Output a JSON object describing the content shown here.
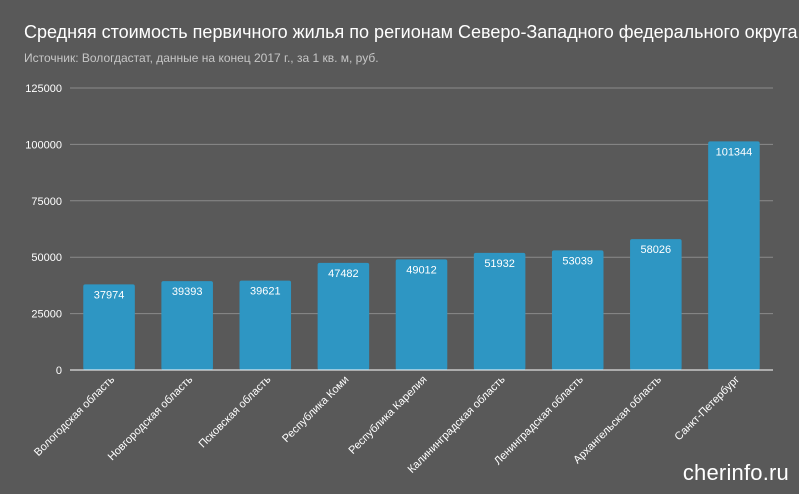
{
  "chart_data": {
    "type": "bar",
    "title": "Средняя стоимость первичного жилья по регионам Северо-Западного федерального округа",
    "subtitle": "Источник: Вологдастат, данные на конец 2017 г., за 1 кв. м, руб.",
    "categories": [
      "Вологодская область",
      "Новгородская область",
      "Псковская область",
      "Республика Коми",
      "Республика Карелия",
      "Калининградская область",
      "Ленинградская область",
      "Архангельская область",
      "Санкт-Петербург"
    ],
    "values": [
      37974,
      39393,
      39621,
      47482,
      49012,
      51932,
      53039,
      58026,
      101344
    ],
    "value_labels": [
      "37974",
      "39393",
      "39621",
      "47482",
      "49012",
      "51932",
      "53039",
      "58026",
      "101344"
    ],
    "yticks": [
      0,
      25000,
      50000,
      75000,
      100000,
      125000
    ],
    "ytick_labels": [
      "0",
      "25000",
      "50000",
      "75000",
      "100000",
      "125000"
    ],
    "ylim": [
      0,
      125000
    ],
    "xlabel": "",
    "ylabel": "",
    "grid": true,
    "bar_color": "#2e96c3",
    "background_color": "#595959"
  },
  "watermark": "cherinfo.ru"
}
